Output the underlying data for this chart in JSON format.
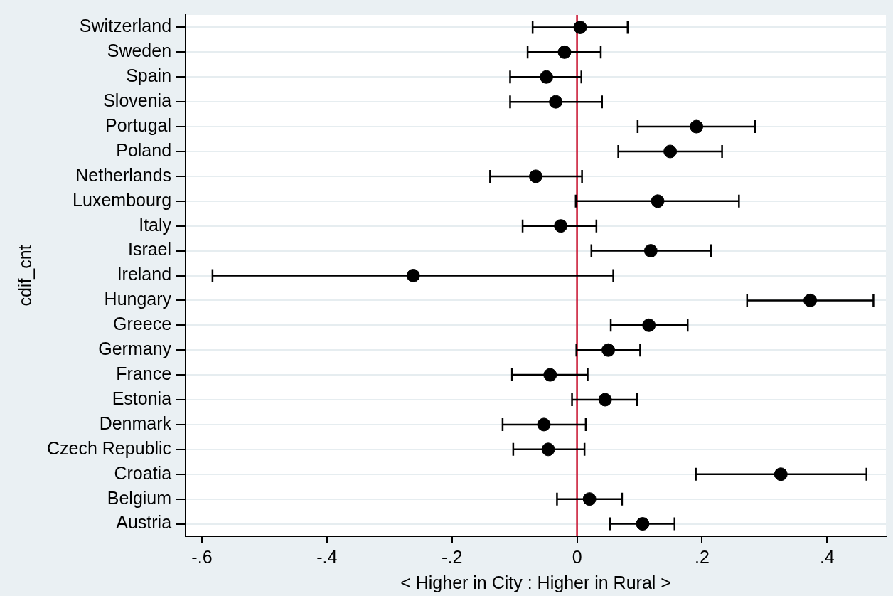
{
  "chart_data": {
    "type": "scatter",
    "orientation": "horizontal",
    "xlabel": "< Higher in City : Higher in Rural >",
    "ylabel": "cdif_cnt",
    "categories": [
      "Switzerland",
      "Sweden",
      "Spain",
      "Slovenia",
      "Portugal",
      "Poland",
      "Netherlands",
      "Luxembourg",
      "Italy",
      "Israel",
      "Ireland",
      "Hungary",
      "Greece",
      "Germany",
      "France",
      "Estonia",
      "Denmark",
      "Czech Republic",
      "Croatia",
      "Belgium",
      "Austria"
    ],
    "values": [
      0.005,
      -0.02,
      -0.049,
      -0.034,
      0.191,
      0.149,
      -0.066,
      0.129,
      -0.026,
      0.118,
      -0.262,
      0.373,
      0.115,
      0.05,
      -0.043,
      0.045,
      -0.053,
      -0.046,
      0.326,
      0.02,
      0.105
    ],
    "errors": [
      [
        -0.071,
        0.081
      ],
      [
        -0.079,
        0.038
      ],
      [
        -0.107,
        0.007
      ],
      [
        -0.107,
        0.04
      ],
      [
        0.097,
        0.285
      ],
      [
        0.066,
        0.232
      ],
      [
        -0.139,
        0.008
      ],
      [
        -0.002,
        0.259
      ],
      [
        -0.087,
        0.031
      ],
      [
        0.023,
        0.214
      ],
      [
        -0.583,
        0.058
      ],
      [
        0.272,
        0.474
      ],
      [
        0.054,
        0.177
      ],
      [
        -0.001,
        0.101
      ],
      [
        -0.104,
        0.017
      ],
      [
        -0.008,
        0.096
      ],
      [
        -0.119,
        0.014
      ],
      [
        -0.102,
        0.012
      ],
      [
        0.19,
        0.463
      ],
      [
        -0.032,
        0.072
      ],
      [
        0.053,
        0.156
      ]
    ],
    "color": "#000000",
    "marker": "circle",
    "grid": "y",
    "xlim": [
      -0.626,
      0.494
    ],
    "xticks": [
      {
        "value": -0.6,
        "label": "-.6"
      },
      {
        "value": -0.4,
        "label": "-.4"
      },
      {
        "value": -0.2,
        "label": "-.2"
      },
      0,
      {
        "value": 0.2,
        "label": ".2"
      },
      {
        "value": 0.4,
        "label": ".4"
      }
    ],
    "ref_lines": [
      {
        "axis": "x",
        "value": 0,
        "color": "#c8102e"
      }
    ],
    "legend": false
  }
}
